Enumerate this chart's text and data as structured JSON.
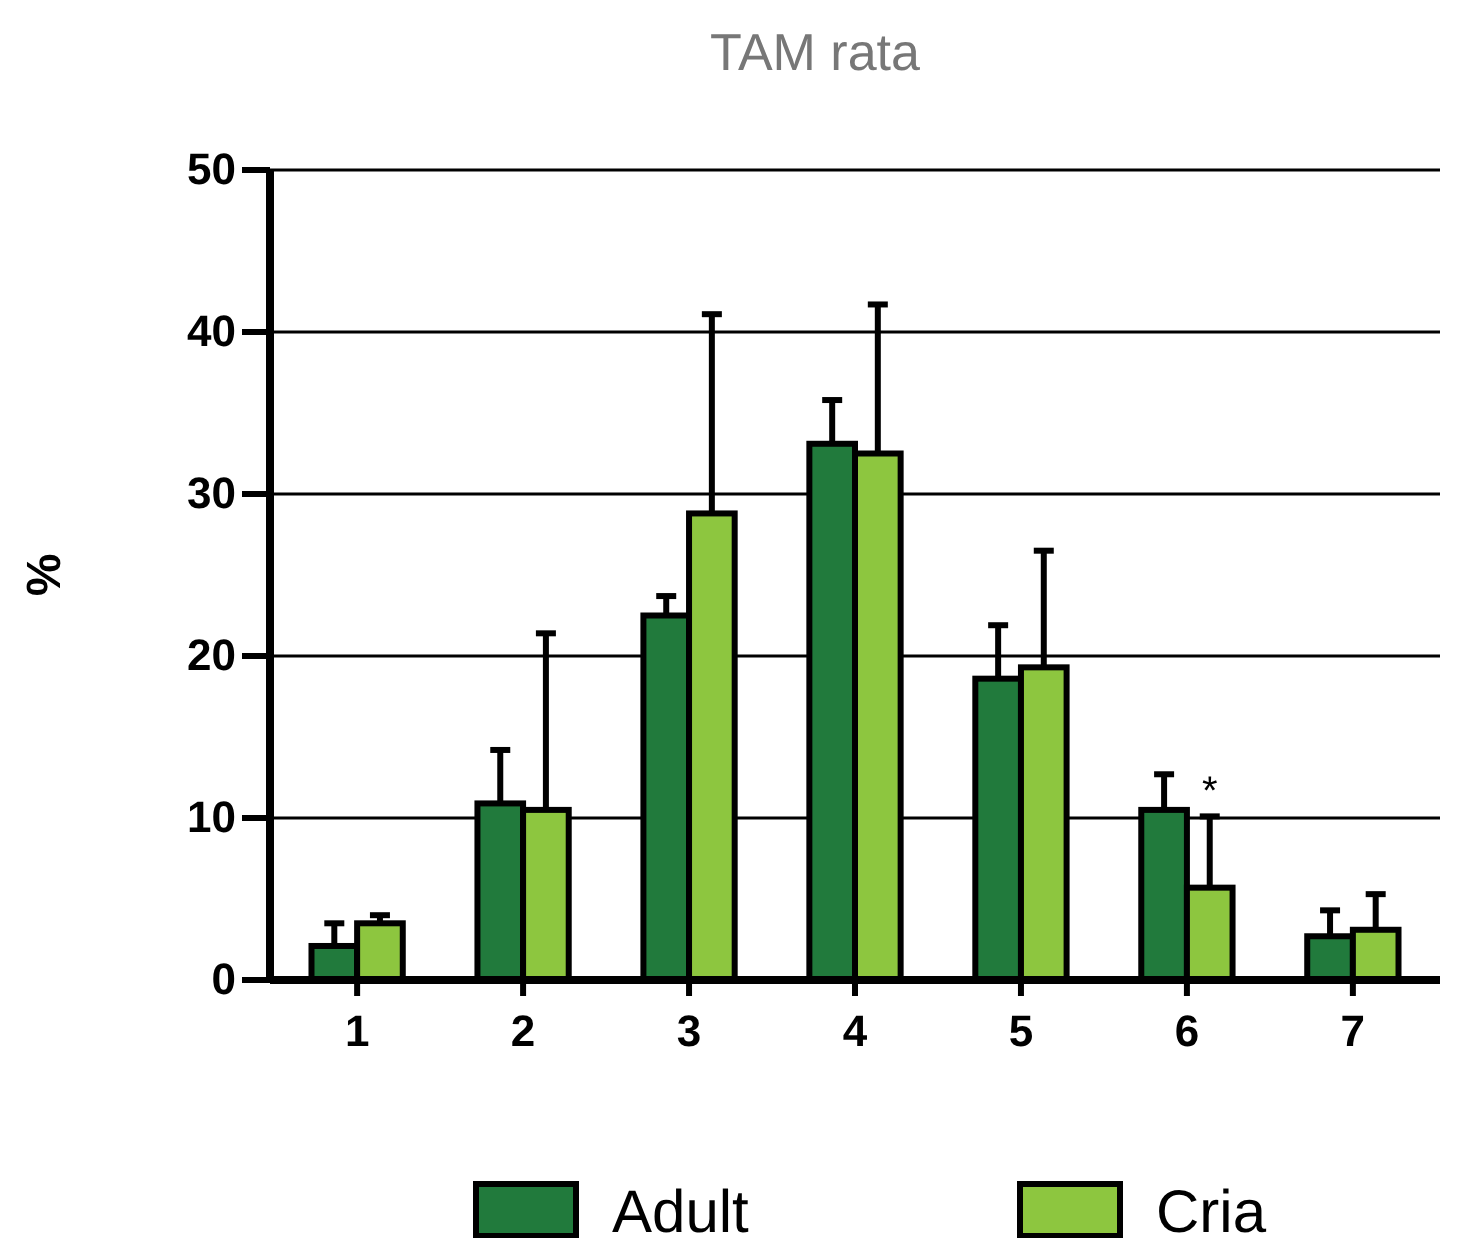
{
  "chart_data": {
    "type": "bar",
    "title": "TAM rata",
    "ylabel": "%",
    "categories": [
      "1",
      "2",
      "3",
      "4",
      "5",
      "6",
      "7"
    ],
    "series": [
      {
        "name": "Adult",
        "color": "#217a3c",
        "values": [
          2.1,
          10.9,
          22.5,
          33.1,
          18.6,
          10.5,
          2.7
        ],
        "errors": [
          [
            2.1,
            3.5
          ],
          [
            10.9,
            14.2
          ],
          [
            22.5,
            23.7
          ],
          [
            33.1,
            35.8
          ],
          [
            18.6,
            21.9
          ],
          [
            10.5,
            12.7
          ],
          [
            2.7,
            4.3
          ]
        ]
      },
      {
        "name": "Cria",
        "color": "#8dc63f",
        "values": [
          3.5,
          10.5,
          28.8,
          32.5,
          19.3,
          5.7,
          3.1
        ],
        "errors": [
          [
            3.5,
            4.0
          ],
          [
            10.5,
            21.4
          ],
          [
            28.8,
            41.1
          ],
          [
            32.5,
            41.7
          ],
          [
            19.3,
            26.5
          ],
          [
            5.7,
            10.1
          ],
          [
            3.1,
            5.3
          ]
        ]
      }
    ],
    "ylim": [
      0,
      50
    ],
    "yticks": [
      0,
      10,
      20,
      30,
      40,
      50
    ],
    "grid": "y",
    "legend": "bottom",
    "annotations": [
      {
        "text": "*",
        "x": "6",
        "y": 10.1
      }
    ]
  }
}
